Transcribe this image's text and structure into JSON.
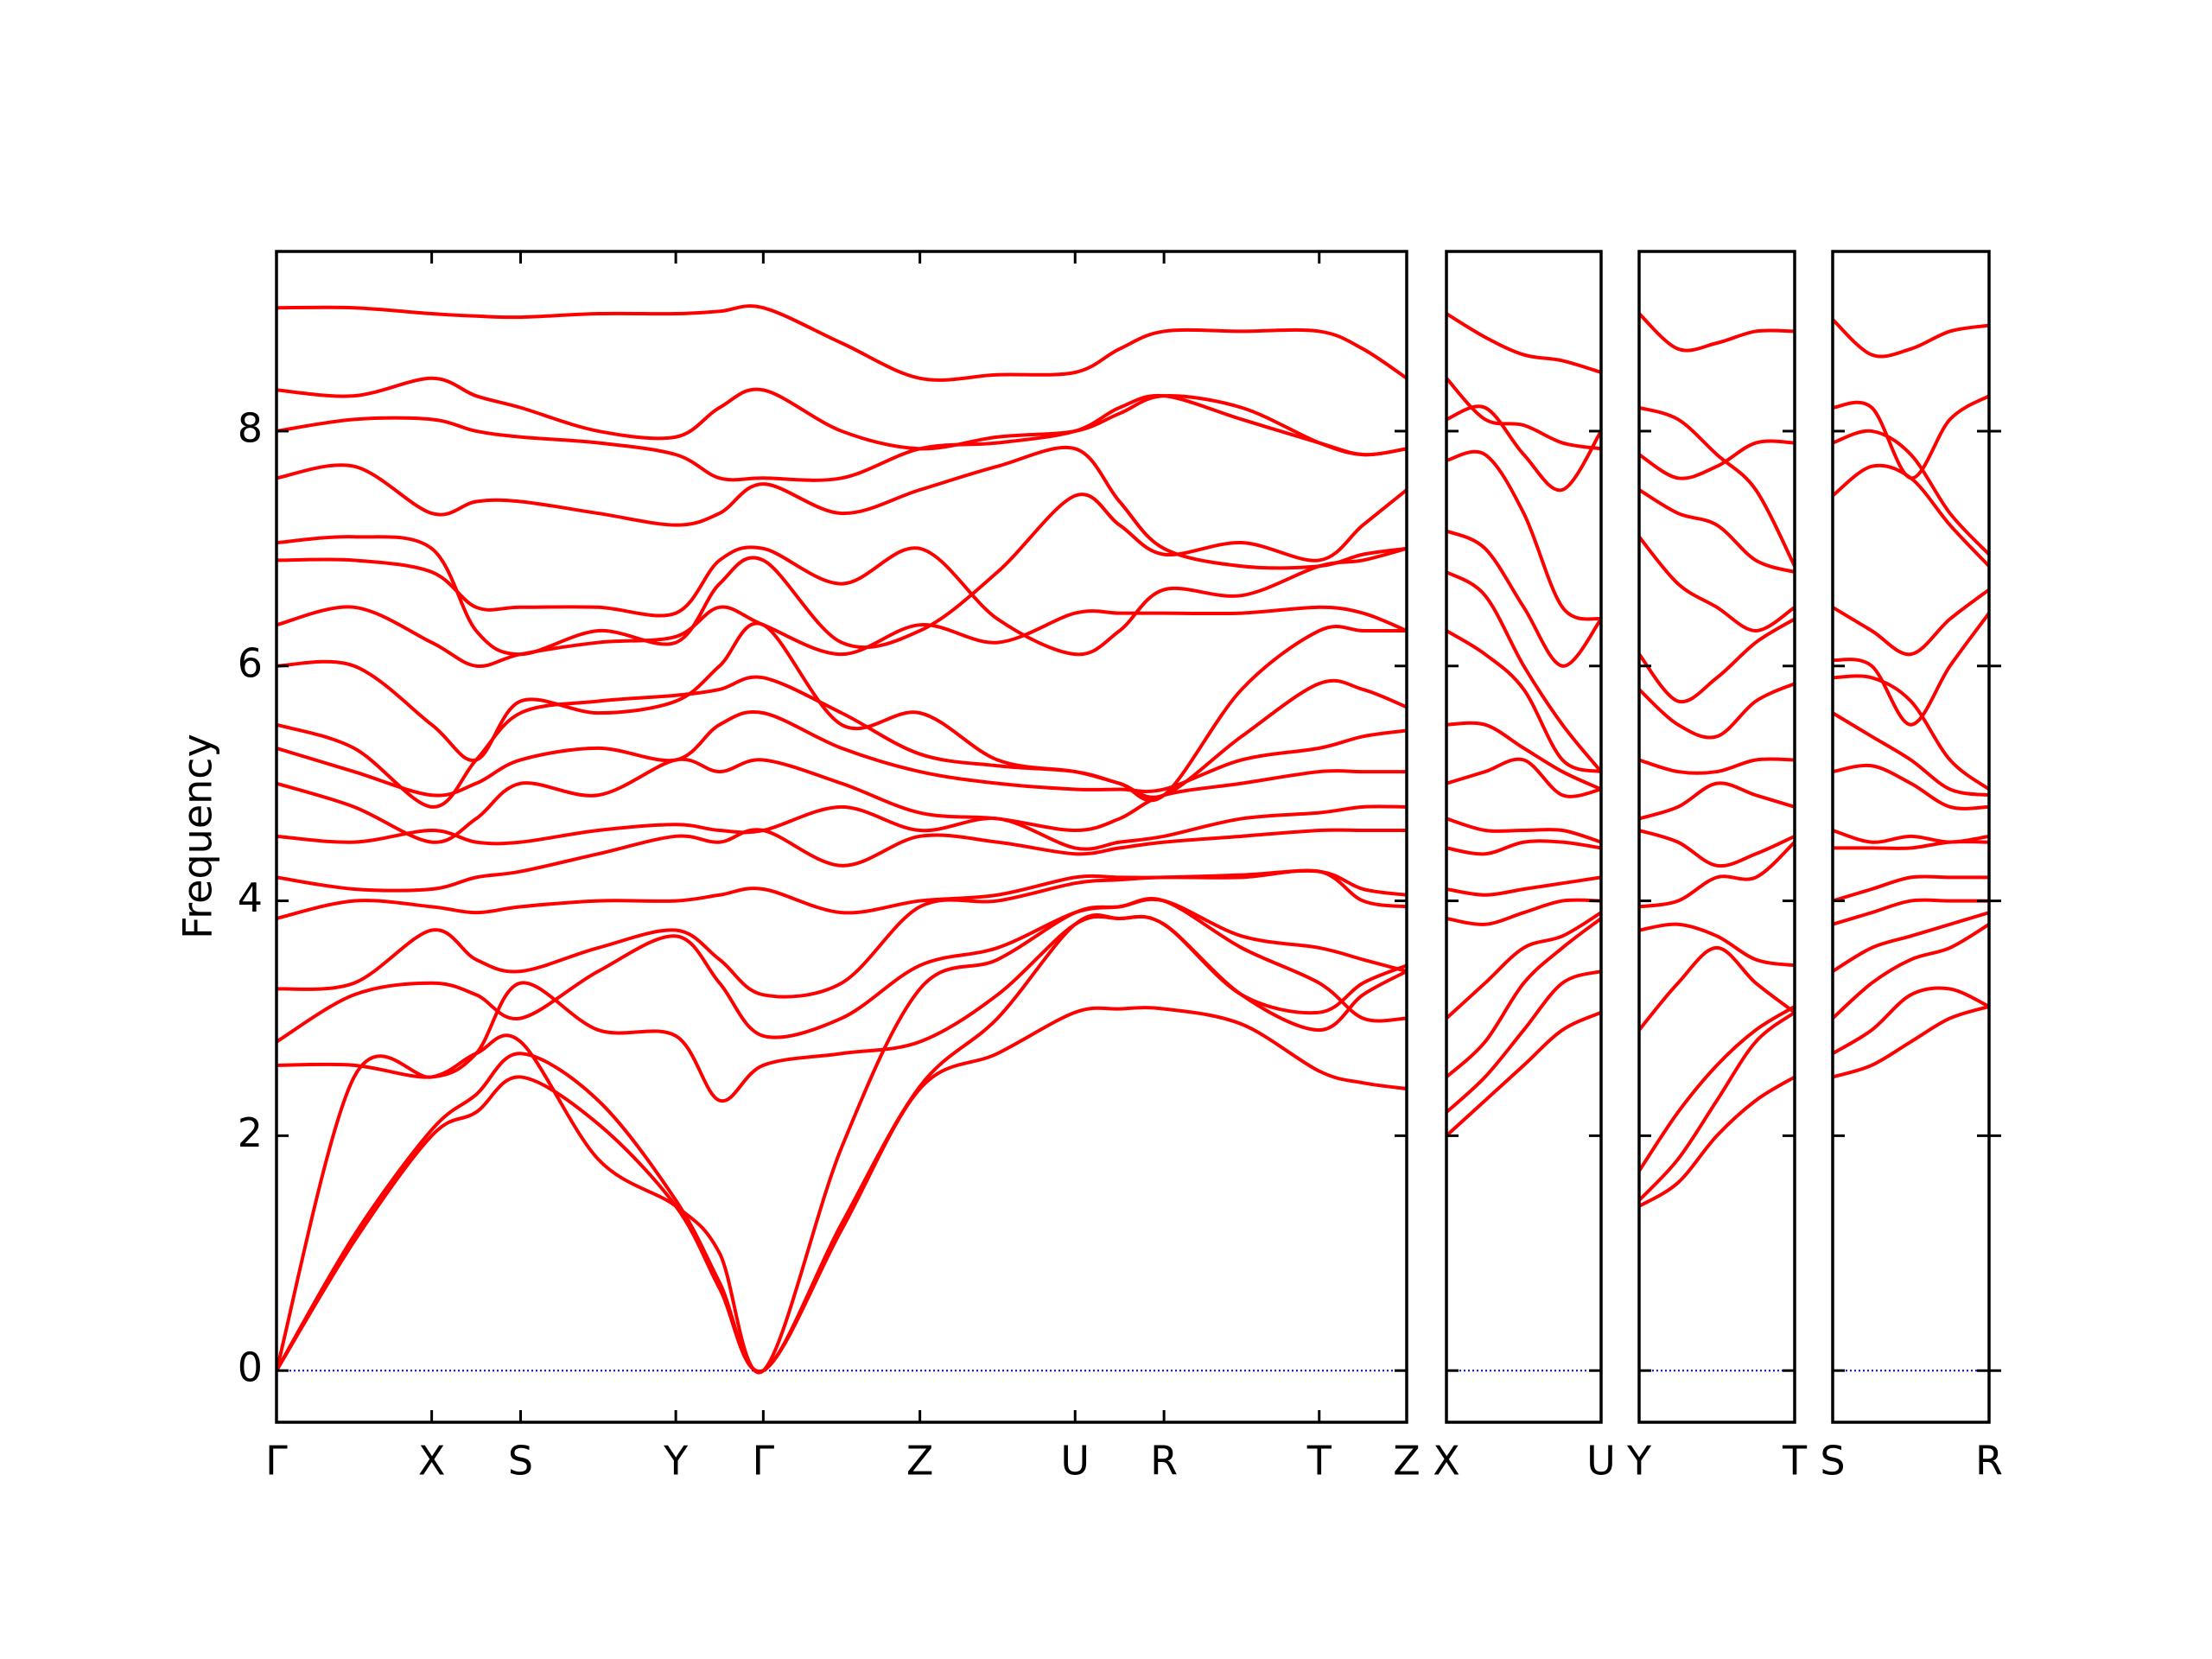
{
  "chart_data": [
    {
      "type": "line",
      "ylabel": "Frequency",
      "color": "#ff0000",
      "ytick_labels": true,
      "zero_line": {
        "y": 0,
        "color": "#0000ff"
      },
      "xlim": [
        0,
        8.01
      ],
      "ylim": [
        -0.44,
        9.53
      ],
      "yticks": [
        0,
        2,
        4,
        6,
        8
      ],
      "xticks": [
        {
          "value": 0,
          "label": "Γ"
        },
        {
          "value": 1.1,
          "label": "X"
        },
        {
          "value": 1.73,
          "label": "S"
        },
        {
          "value": 2.83,
          "label": "Y"
        },
        {
          "value": 3.45,
          "label": "Γ"
        },
        {
          "value": 4.56,
          "label": "Z"
        },
        {
          "value": 5.66,
          "label": "U"
        },
        {
          "value": 6.29,
          "label": "R"
        },
        {
          "value": 7.39,
          "label": "T"
        },
        {
          "value": 8.01,
          "label": "Z"
        }
      ],
      "x": [
        0,
        0.55,
        1.1,
        1.415,
        1.73,
        2.28,
        2.83,
        3.14,
        3.45,
        4.005,
        4.56,
        5.11,
        5.66,
        5.975,
        6.29,
        6.84,
        7.39,
        7.7,
        8.01
      ],
      "series": [
        {
          "values": [
            0,
            1.1,
            2.0,
            2.2,
            2.5,
            2.1,
            1.4,
            0.7,
            0,
            1.2,
            2.4,
            2.7,
            3.05,
            3.08,
            3.08,
            2.95,
            2.55,
            2.45,
            2.4
          ]
        },
        {
          "values": [
            0,
            1.15,
            2.05,
            2.35,
            2.7,
            2.3,
            1.45,
            0.75,
            0,
            1.25,
            2.42,
            3.0,
            3.8,
            3.85,
            3.8,
            3.2,
            3.05,
            3.3,
            3.45
          ]
        },
        {
          "values": [
            0,
            2.5,
            2.5,
            2.7,
            2.8,
            1.8,
            1.4,
            1.0,
            0,
            1.9,
            3.25,
            3.5,
            3.9,
            3.95,
            4.0,
            3.6,
            3.3,
            3.0,
            3.0
          ]
        },
        {
          "values": [
            2.6,
            2.6,
            2.5,
            2.7,
            3.3,
            2.9,
            2.85,
            2.3,
            2.6,
            2.7,
            2.8,
            3.2,
            3.8,
            3.85,
            3.8,
            3.2,
            2.9,
            3.2,
            3.4
          ]
        },
        {
          "values": [
            2.8,
            3.2,
            3.3,
            3.2,
            3.0,
            3.4,
            3.7,
            3.3,
            2.85,
            3.0,
            3.45,
            3.6,
            3.9,
            3.95,
            4.0,
            3.7,
            3.6,
            3.5,
            3.4
          ]
        },
        {
          "values": [
            3.25,
            3.3,
            3.75,
            3.5,
            3.4,
            3.6,
            3.75,
            3.5,
            3.2,
            3.3,
            3.95,
            4.0,
            4.15,
            4.18,
            4.2,
            4.2,
            4.25,
            4.0,
            3.95
          ]
        },
        {
          "values": [
            3.85,
            4.0,
            3.95,
            3.9,
            3.95,
            4.0,
            4.0,
            4.05,
            4.1,
            3.9,
            4.0,
            4.05,
            4.2,
            4.2,
            4.2,
            4.22,
            4.25,
            4.1,
            4.05
          ]
        },
        {
          "values": [
            4.2,
            4.1,
            4.1,
            4.2,
            4.25,
            4.4,
            4.55,
            4.5,
            4.6,
            4.3,
            4.55,
            4.5,
            4.4,
            4.45,
            4.5,
            4.55,
            4.6,
            4.6,
            4.6
          ]
        },
        {
          "values": [
            4.55,
            4.5,
            4.6,
            4.5,
            4.5,
            4.6,
            4.65,
            4.6,
            4.6,
            4.8,
            4.6,
            4.7,
            4.45,
            4.5,
            4.55,
            4.7,
            4.75,
            4.8,
            4.8
          ]
        },
        {
          "values": [
            5.0,
            4.8,
            4.5,
            4.7,
            5.0,
            4.9,
            5.2,
            5.1,
            5.2,
            5.0,
            4.75,
            4.7,
            4.6,
            4.7,
            4.9,
            5.0,
            5.1,
            5.1,
            5.1
          ]
        },
        {
          "values": [
            5.3,
            5.1,
            4.9,
            5.0,
            5.2,
            5.3,
            5.2,
            5.5,
            5.6,
            5.3,
            5.1,
            5.0,
            4.95,
            4.95,
            4.95,
            5.2,
            5.3,
            5.4,
            5.45
          ]
        },
        {
          "values": [
            5.5,
            5.3,
            4.8,
            5.2,
            5.6,
            5.7,
            5.75,
            5.8,
            5.9,
            5.6,
            5.25,
            5.15,
            5.1,
            5.0,
            4.9,
            5.4,
            5.85,
            5.8,
            5.65
          ]
        },
        {
          "values": [
            6.0,
            6.0,
            5.5,
            5.2,
            5.7,
            5.6,
            5.7,
            6.0,
            6.35,
            5.5,
            5.6,
            5.2,
            5.1,
            5.0,
            4.9,
            5.8,
            6.3,
            6.3,
            6.3
          ]
        },
        {
          "values": [
            6.35,
            6.5,
            6.2,
            6.0,
            6.1,
            6.2,
            6.25,
            6.5,
            6.35,
            6.1,
            6.35,
            6.2,
            6.45,
            6.45,
            6.45,
            6.45,
            6.5,
            6.45,
            6.3
          ]
        },
        {
          "values": [
            6.9,
            6.9,
            6.8,
            6.5,
            6.5,
            6.5,
            6.45,
            6.9,
            7.0,
            6.7,
            7.0,
            6.4,
            6.1,
            6.3,
            6.65,
            6.6,
            6.85,
            6.9,
            7.0
          ]
        },
        {
          "values": [
            7.05,
            7.1,
            7.0,
            6.3,
            6.1,
            6.3,
            6.2,
            6.7,
            6.9,
            6.2,
            6.3,
            6.8,
            7.45,
            7.2,
            6.95,
            7.05,
            6.9,
            7.2,
            7.5
          ]
        },
        {
          "values": [
            7.6,
            7.7,
            7.3,
            7.4,
            7.4,
            7.3,
            7.2,
            7.3,
            7.55,
            7.3,
            7.5,
            7.7,
            7.85,
            7.4,
            7.0,
            6.85,
            6.85,
            6.95,
            7.0
          ]
        },
        {
          "values": [
            8.0,
            8.1,
            8.1,
            8.0,
            7.95,
            7.9,
            7.8,
            7.6,
            7.6,
            7.6,
            7.85,
            7.9,
            8.0,
            8.2,
            8.3,
            8.1,
            7.9,
            7.8,
            7.85
          ]
        },
        {
          "values": [
            8.35,
            8.3,
            8.45,
            8.3,
            8.2,
            8.0,
            7.95,
            8.2,
            8.35,
            8.0,
            7.85,
            7.95,
            8.0,
            8.15,
            8.3,
            8.2,
            7.9,
            7.8,
            7.85
          ]
        },
        {
          "values": [
            9.05,
            9.05,
            9.0,
            8.98,
            8.97,
            9.0,
            9.0,
            9.02,
            9.05,
            8.75,
            8.45,
            8.48,
            8.5,
            8.7,
            8.85,
            8.85,
            8.85,
            8.7,
            8.45
          ]
        }
      ]
    },
    {
      "type": "line",
      "color": "#ff0000",
      "zero_line": {
        "y": 0,
        "color": "#0000ff"
      },
      "xlim": [
        0,
        1.1
      ],
      "ylim": [
        -0.44,
        9.53
      ],
      "yticks": [
        0,
        2,
        4,
        6,
        8
      ],
      "xticks": [
        {
          "value": 0,
          "label": "X"
        },
        {
          "value": 1.1,
          "label": "U"
        }
      ],
      "x": [
        0,
        0.275,
        0.55,
        0.825,
        1.1
      ],
      "series": [
        {
          "values": [
            2.0,
            2.3,
            2.6,
            2.9,
            3.05
          ]
        },
        {
          "values": [
            2.2,
            2.5,
            2.9,
            3.3,
            3.4
          ]
        },
        {
          "values": [
            2.5,
            2.8,
            3.3,
            3.6,
            3.85
          ]
        },
        {
          "values": [
            3.0,
            3.3,
            3.6,
            3.7,
            3.9
          ]
        },
        {
          "values": [
            3.85,
            3.8,
            3.9,
            4.0,
            4.0
          ]
        },
        {
          "values": [
            4.1,
            4.05,
            4.1,
            4.15,
            4.2
          ]
        },
        {
          "values": [
            4.45,
            4.4,
            4.5,
            4.5,
            4.45
          ]
        },
        {
          "values": [
            4.7,
            4.6,
            4.6,
            4.6,
            4.5
          ]
        },
        {
          "values": [
            5.0,
            5.1,
            5.2,
            4.9,
            4.95
          ]
        },
        {
          "values": [
            5.5,
            5.5,
            5.3,
            5.1,
            4.95
          ]
        },
        {
          "values": [
            6.3,
            6.1,
            5.8,
            5.2,
            5.1
          ]
        },
        {
          "values": [
            6.8,
            6.6,
            6.0,
            5.5,
            5.1
          ]
        },
        {
          "values": [
            7.15,
            7.0,
            6.5,
            6.0,
            6.4
          ]
        },
        {
          "values": [
            7.75,
            7.8,
            7.3,
            6.5,
            6.4
          ]
        },
        {
          "values": [
            8.1,
            8.2,
            7.8,
            7.5,
            8.0
          ]
        },
        {
          "values": [
            8.45,
            8.1,
            8.05,
            7.9,
            7.85
          ]
        },
        {
          "values": [
            9.0,
            8.8,
            8.65,
            8.6,
            8.5
          ]
        }
      ]
    },
    {
      "type": "line",
      "color": "#ff0000",
      "zero_line": {
        "y": 0,
        "color": "#0000ff"
      },
      "xlim": [
        0,
        1.1
      ],
      "ylim": [
        -0.44,
        9.53
      ],
      "yticks": [
        0,
        2,
        4,
        6,
        8
      ],
      "xticks": [
        {
          "value": 0,
          "label": "Y"
        },
        {
          "value": 1.1,
          "label": "T"
        }
      ],
      "x": [
        0,
        0.275,
        0.55,
        0.825,
        1.1
      ],
      "series": [
        {
          "values": [
            1.4,
            1.6,
            2.0,
            2.3,
            2.5
          ]
        },
        {
          "values": [
            1.45,
            1.8,
            2.3,
            2.8,
            3.05
          ]
        },
        {
          "values": [
            1.7,
            2.2,
            2.6,
            2.9,
            3.1
          ]
        },
        {
          "values": [
            2.9,
            3.3,
            3.6,
            3.3,
            3.05
          ]
        },
        {
          "values": [
            3.75,
            3.8,
            3.7,
            3.5,
            3.45
          ]
        },
        {
          "values": [
            3.95,
            4.0,
            4.2,
            4.2,
            4.5
          ]
        },
        {
          "values": [
            4.6,
            4.5,
            4.3,
            4.4,
            4.55
          ]
        },
        {
          "values": [
            4.7,
            4.8,
            5.0,
            4.9,
            4.8
          ]
        },
        {
          "values": [
            5.2,
            5.1,
            5.1,
            5.2,
            5.2
          ]
        },
        {
          "values": [
            5.8,
            5.5,
            5.4,
            5.7,
            5.85
          ]
        },
        {
          "values": [
            6.1,
            5.7,
            5.9,
            6.2,
            6.4
          ]
        },
        {
          "values": [
            7.1,
            6.7,
            6.5,
            6.3,
            6.5
          ]
        },
        {
          "values": [
            7.5,
            7.3,
            7.2,
            6.9,
            6.8
          ]
        },
        {
          "values": [
            7.8,
            7.6,
            7.7,
            7.9,
            7.9
          ]
        },
        {
          "values": [
            8.2,
            8.1,
            7.8,
            7.5,
            6.85
          ]
        },
        {
          "values": [
            9.0,
            8.7,
            8.75,
            8.85,
            8.85
          ]
        }
      ]
    },
    {
      "type": "line",
      "color": "#ff0000",
      "zero_line": {
        "y": 0,
        "color": "#0000ff"
      },
      "xlim": [
        0,
        1.1
      ],
      "ylim": [
        -0.44,
        9.53
      ],
      "yticks": [
        0,
        2,
        4,
        6,
        8
      ],
      "xticks": [
        {
          "value": 0,
          "label": "S"
        },
        {
          "value": 1.1,
          "label": "R"
        }
      ],
      "x": [
        0,
        0.275,
        0.55,
        0.825,
        1.1
      ],
      "series": [
        {
          "values": [
            2.5,
            2.6,
            2.8,
            3.0,
            3.1
          ]
        },
        {
          "values": [
            2.7,
            2.9,
            3.2,
            3.25,
            3.1
          ]
        },
        {
          "values": [
            3.0,
            3.3,
            3.5,
            3.6,
            3.8
          ]
        },
        {
          "values": [
            3.4,
            3.6,
            3.7,
            3.8,
            3.9
          ]
        },
        {
          "values": [
            3.8,
            3.9,
            4.0,
            4.0,
            4.0
          ]
        },
        {
          "values": [
            4.0,
            4.1,
            4.2,
            4.2,
            4.2
          ]
        },
        {
          "values": [
            4.45,
            4.45,
            4.45,
            4.5,
            4.5
          ]
        },
        {
          "values": [
            4.6,
            4.5,
            4.55,
            4.5,
            4.55
          ]
        },
        {
          "values": [
            5.1,
            5.15,
            5.0,
            4.8,
            4.8
          ]
        },
        {
          "values": [
            5.6,
            5.4,
            5.2,
            4.95,
            4.9
          ]
        },
        {
          "values": [
            5.9,
            5.9,
            5.7,
            5.2,
            4.95
          ]
        },
        {
          "values": [
            6.05,
            6.0,
            5.5,
            6.0,
            6.45
          ]
        },
        {
          "values": [
            6.5,
            6.3,
            6.1,
            6.4,
            6.65
          ]
        },
        {
          "values": [
            7.45,
            7.7,
            7.6,
            7.2,
            6.85
          ]
        },
        {
          "values": [
            7.9,
            8.0,
            7.8,
            7.3,
            6.95
          ]
        },
        {
          "values": [
            8.2,
            8.2,
            7.6,
            8.1,
            8.3
          ]
        },
        {
          "values": [
            8.95,
            8.65,
            8.7,
            8.85,
            8.9
          ]
        }
      ]
    }
  ]
}
